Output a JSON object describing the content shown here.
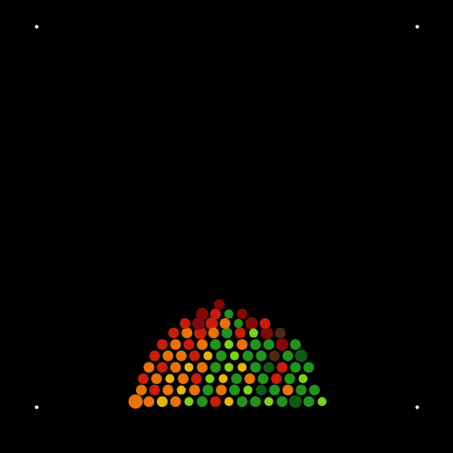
{
  "chart_data": {
    "type": "scatter",
    "marker": "circle",
    "tick_labels": false,
    "xlim": [
      0,
      100
    ],
    "ylim": [
      0,
      100
    ],
    "x": [
      0,
      100,
      0,
      100,
      26,
      29.5,
      33,
      36.5,
      40,
      43.5,
      47,
      50.5,
      54,
      57.5,
      61,
      64.5,
      68,
      71.5,
      75,
      27.5,
      31,
      34.5,
      38,
      41.5,
      45,
      48.5,
      52,
      55.5,
      59,
      62.5,
      66,
      69.5,
      73,
      28,
      31.5,
      35,
      38.5,
      42,
      45.5,
      49,
      52.5,
      56,
      59.5,
      63,
      66.5,
      70,
      29.5,
      33,
      36.5,
      40,
      43.5,
      47,
      50.5,
      54,
      57.5,
      61,
      64.5,
      68,
      71.5,
      31,
      34.5,
      38,
      41.5,
      45,
      48.5,
      52,
      55.5,
      59,
      62.5,
      66,
      69.5,
      33,
      36.5,
      40,
      43.5,
      47,
      50.5,
      54,
      57.5,
      61,
      64.5,
      68,
      36,
      39.5,
      43,
      46.5,
      50,
      53.5,
      57,
      60.5,
      64,
      39,
      42.5,
      46,
      49.5,
      53,
      56.5,
      60,
      43.5,
      47,
      50.5,
      54,
      48
    ],
    "y": [
      0,
      0,
      100,
      100,
      1.5,
      1.5,
      1.5,
      1.5,
      1.5,
      1.5,
      1.5,
      1.5,
      1.5,
      1.5,
      1.5,
      1.5,
      1.5,
      1.5,
      1.5,
      4.5,
      4.5,
      4.5,
      4.5,
      4.5,
      4.5,
      4.5,
      4.5,
      4.5,
      4.5,
      4.5,
      4.5,
      4.5,
      4.5,
      7.5,
      7.5,
      7.5,
      7.5,
      7.5,
      7.5,
      7.5,
      7.5,
      7.5,
      7.5,
      7.5,
      7.5,
      7.5,
      10.5,
      10.5,
      10.5,
      10.5,
      10.5,
      10.5,
      10.5,
      10.5,
      10.5,
      10.5,
      10.5,
      10.5,
      10.5,
      13.5,
      13.5,
      13.5,
      13.5,
      13.5,
      13.5,
      13.5,
      13.5,
      13.5,
      13.5,
      13.5,
      13.5,
      16.5,
      16.5,
      16.5,
      16.5,
      16.5,
      16.5,
      16.5,
      16.5,
      16.5,
      16.5,
      16.5,
      19.5,
      19.5,
      19.5,
      19.5,
      19.5,
      19.5,
      19.5,
      19.5,
      19.5,
      22,
      22,
      22,
      22,
      22,
      22,
      22,
      24.5,
      24.5,
      24.5,
      24.5,
      27
    ],
    "sizes": [
      2,
      2,
      2,
      2,
      8,
      6,
      6,
      6,
      5,
      6,
      6,
      5,
      6,
      6,
      5,
      6,
      7,
      6,
      5,
      6,
      6,
      6,
      5,
      6,
      6,
      6,
      6,
      5,
      6,
      6,
      6,
      6,
      6,
      6,
      6,
      5,
      6,
      6,
      5,
      5,
      6,
      6,
      6,
      6,
      6,
      5,
      6,
      6,
      6,
      5,
      6,
      6,
      5,
      5,
      6,
      6,
      6,
      6,
      6,
      6,
      6,
      6,
      6,
      5,
      6,
      5,
      6,
      6,
      6,
      6,
      7,
      6,
      6,
      6,
      6,
      6,
      5,
      6,
      6,
      6,
      7,
      6,
      6,
      6,
      7,
      6,
      6,
      6,
      5,
      7,
      6,
      6,
      7,
      7,
      6,
      5,
      7,
      6,
      7,
      6,
      5,
      6,
      6
    ],
    "colors": [
      "#ffffff",
      "#ffffff",
      "#ffffff",
      "#ffffff",
      "#e8720c",
      "#e8720c",
      "#e5b512",
      "#e8720c",
      "#7cd11c",
      "#23921e",
      "#c41e0e",
      "#e5b512",
      "#23921e",
      "#23921e",
      "#7cd11c",
      "#23921e",
      "#0e5c12",
      "#23921e",
      "#7cd11c",
      "#e8720c",
      "#c41e0e",
      "#e8720c",
      "#e5b512",
      "#e8720c",
      "#23921e",
      "#e8720c",
      "#23921e",
      "#7cd11c",
      "#0e5c12",
      "#23921e",
      "#e8720c",
      "#23921e",
      "#23921e",
      "#c41e0e",
      "#e8720c",
      "#e5b512",
      "#e8720c",
      "#c41e0e",
      "#7cd11c",
      "#e5b512",
      "#23921e",
      "#e8720c",
      "#23921e",
      "#c41e0e",
      "#23921e",
      "#7cd11c",
      "#e8720c",
      "#c41e0e",
      "#e8720c",
      "#e5b512",
      "#e8720c",
      "#23921e",
      "#7cd11c",
      "#e5b512",
      "#23921e",
      "#0e5c12",
      "#c41e0e",
      "#23921e",
      "#23921e",
      "#c41e0e",
      "#e8720c",
      "#e8720c",
      "#c41e0e",
      "#e5b512",
      "#23921e",
      "#7cd11c",
      "#23921e",
      "#23921e",
      "#4a2a12",
      "#23921e",
      "#0e5c12",
      "#c41e0e",
      "#e8720c",
      "#c41e0e",
      "#e8720c",
      "#23921e",
      "#7cd11c",
      "#e8720c",
      "#23921e",
      "#23921e",
      "#7e0a0a",
      "#23921e",
      "#c41e0e",
      "#e8720c",
      "#c41e0e",
      "#e8720c",
      "#23921e",
      "#c41e0e",
      "#7cd11c",
      "#7e0a0a",
      "#4a2a12",
      "#c41e0e",
      "#7e0a0a",
      "#c41e0e",
      "#e8720c",
      "#23921e",
      "#7e0a0a",
      "#c41e0e",
      "#7e0a0a",
      "#c41e0e",
      "#23921e",
      "#7e0a0a",
      "#7e0a0a"
    ]
  }
}
